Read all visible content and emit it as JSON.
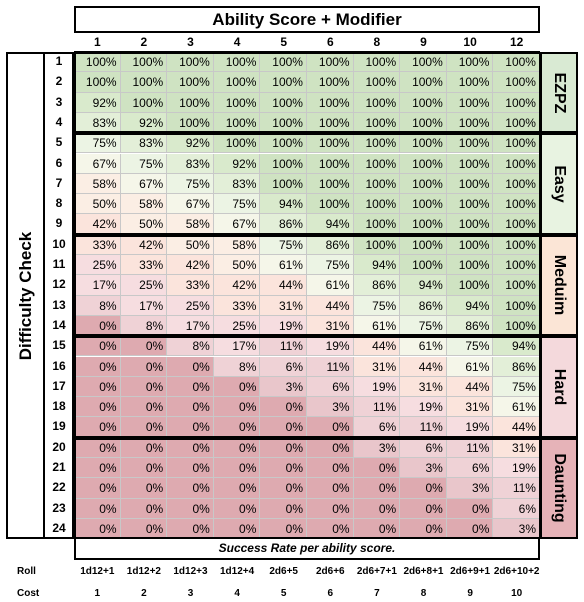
{
  "title": "Ability Score + Modifier",
  "dc_label": "Difficulty Check",
  "footer_note": "Success Rate per ability score.",
  "row_labels": {
    "roll": "Roll",
    "cost": "Cost"
  },
  "columns": [
    "1",
    "2",
    "3",
    "4",
    "5",
    "6",
    "8",
    "9",
    "10",
    "12"
  ],
  "rolls": [
    "1d12+1",
    "1d12+2",
    "1d12+3",
    "1d12+4",
    "2d6+5",
    "2d6+6",
    "2d6+7+1",
    "2d6+8+1",
    "2d6+9+1",
    "2d6+10+2"
  ],
  "costs": [
    "1",
    "2",
    "3",
    "4",
    "5",
    "6",
    "7",
    "8",
    "9",
    "10"
  ],
  "tiers": [
    {
      "name": "EZPZ",
      "color": "#d9ead3"
    },
    {
      "name": "Easy",
      "color": "#e8f3e1"
    },
    {
      "name": "Meduim",
      "color": "#fbe5d6"
    },
    {
      "name": "Hard",
      "color": "#f4d9dc"
    },
    {
      "name": "Daunting",
      "color": "#e6b3b8"
    }
  ],
  "rows": [
    {
      "dc": "1",
      "values": [
        "100%",
        "100%",
        "100%",
        "100%",
        "100%",
        "100%",
        "100%",
        "100%",
        "100%",
        "100%"
      ]
    },
    {
      "dc": "2",
      "values": [
        "100%",
        "100%",
        "100%",
        "100%",
        "100%",
        "100%",
        "100%",
        "100%",
        "100%",
        "100%"
      ]
    },
    {
      "dc": "3",
      "values": [
        "92%",
        "100%",
        "100%",
        "100%",
        "100%",
        "100%",
        "100%",
        "100%",
        "100%",
        "100%"
      ]
    },
    {
      "dc": "4",
      "values": [
        "83%",
        "92%",
        "100%",
        "100%",
        "100%",
        "100%",
        "100%",
        "100%",
        "100%",
        "100%"
      ]
    },
    {
      "dc": "5",
      "values": [
        "75%",
        "83%",
        "92%",
        "100%",
        "100%",
        "100%",
        "100%",
        "100%",
        "100%",
        "100%"
      ]
    },
    {
      "dc": "6",
      "values": [
        "67%",
        "75%",
        "83%",
        "92%",
        "100%",
        "100%",
        "100%",
        "100%",
        "100%",
        "100%"
      ]
    },
    {
      "dc": "7",
      "values": [
        "58%",
        "67%",
        "75%",
        "83%",
        "100%",
        "100%",
        "100%",
        "100%",
        "100%",
        "100%"
      ]
    },
    {
      "dc": "8",
      "values": [
        "50%",
        "58%",
        "67%",
        "75%",
        "94%",
        "100%",
        "100%",
        "100%",
        "100%",
        "100%"
      ]
    },
    {
      "dc": "9",
      "values": [
        "42%",
        "50%",
        "58%",
        "67%",
        "86%",
        "94%",
        "100%",
        "100%",
        "100%",
        "100%"
      ]
    },
    {
      "dc": "10",
      "values": [
        "33%",
        "42%",
        "50%",
        "58%",
        "75%",
        "86%",
        "100%",
        "100%",
        "100%",
        "100%"
      ]
    },
    {
      "dc": "11",
      "values": [
        "25%",
        "33%",
        "42%",
        "50%",
        "61%",
        "75%",
        "94%",
        "100%",
        "100%",
        "100%"
      ]
    },
    {
      "dc": "12",
      "values": [
        "17%",
        "25%",
        "33%",
        "42%",
        "44%",
        "61%",
        "86%",
        "94%",
        "100%",
        "100%"
      ]
    },
    {
      "dc": "13",
      "values": [
        "8%",
        "17%",
        "25%",
        "33%",
        "31%",
        "44%",
        "75%",
        "86%",
        "94%",
        "100%"
      ]
    },
    {
      "dc": "14",
      "values": [
        "0%",
        "8%",
        "17%",
        "25%",
        "19%",
        "31%",
        "61%",
        "75%",
        "86%",
        "100%"
      ]
    },
    {
      "dc": "15",
      "values": [
        "0%",
        "0%",
        "8%",
        "17%",
        "11%",
        "19%",
        "44%",
        "61%",
        "75%",
        "94%"
      ]
    },
    {
      "dc": "16",
      "values": [
        "0%",
        "0%",
        "0%",
        "8%",
        "6%",
        "11%",
        "31%",
        "44%",
        "61%",
        "86%"
      ]
    },
    {
      "dc": "17",
      "values": [
        "0%",
        "0%",
        "0%",
        "0%",
        "3%",
        "6%",
        "19%",
        "31%",
        "44%",
        "75%"
      ]
    },
    {
      "dc": "18",
      "values": [
        "0%",
        "0%",
        "0%",
        "0%",
        "0%",
        "3%",
        "11%",
        "19%",
        "31%",
        "61%"
      ]
    },
    {
      "dc": "19",
      "values": [
        "0%",
        "0%",
        "0%",
        "0%",
        "0%",
        "0%",
        "6%",
        "11%",
        "19%",
        "44%"
      ]
    },
    {
      "dc": "20",
      "values": [
        "0%",
        "0%",
        "0%",
        "0%",
        "0%",
        "0%",
        "3%",
        "6%",
        "11%",
        "31%"
      ]
    },
    {
      "dc": "21",
      "values": [
        "0%",
        "0%",
        "0%",
        "0%",
        "0%",
        "0%",
        "0%",
        "3%",
        "6%",
        "19%"
      ]
    },
    {
      "dc": "22",
      "values": [
        "0%",
        "0%",
        "0%",
        "0%",
        "0%",
        "0%",
        "0%",
        "0%",
        "3%",
        "11%"
      ]
    },
    {
      "dc": "23",
      "values": [
        "0%",
        "0%",
        "0%",
        "0%",
        "0%",
        "0%",
        "0%",
        "0%",
        "0%",
        "6%"
      ]
    },
    {
      "dc": "24",
      "values": [
        "0%",
        "0%",
        "0%",
        "0%",
        "0%",
        "0%",
        "0%",
        "0%",
        "0%",
        "3%"
      ]
    }
  ]
}
